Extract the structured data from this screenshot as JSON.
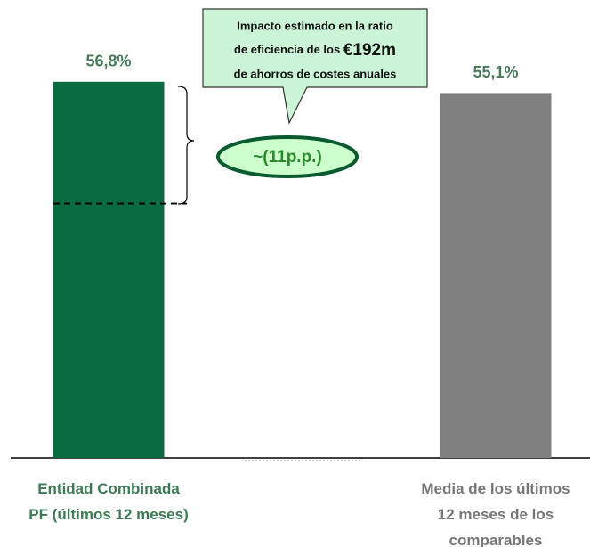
{
  "chart_data": {
    "type": "bar",
    "categories": [
      "Entidad Combinada\nPF (últimos 12 meses)",
      "Media de los últimos\n12 meses de los\ncomparables"
    ],
    "series": [
      {
        "colors": [
          "#0a6b40",
          "#808080"
        ],
        "values": [
          56.8,
          55.1
        ],
        "value_labels": [
          "56,8%",
          "55,1%"
        ]
      }
    ],
    "ylim": [
      0,
      60
    ],
    "reference_line": 38.4,
    "annotations": {
      "callout_lines": [
        "Impacto estimado en la ratio",
        "de eficiencia de los",
        "€192m",
        "de ahorros de costes anuales"
      ],
      "gap_label": "~(11p.p.)"
    }
  }
}
